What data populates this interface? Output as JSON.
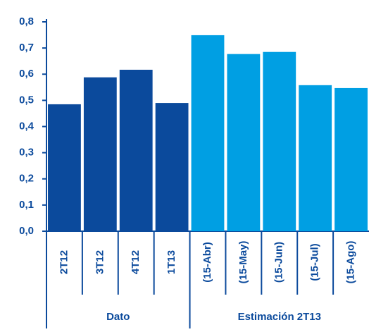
{
  "chart_data": {
    "type": "bar",
    "groups": [
      {
        "name": "Dato",
        "color": "#0b4a9c",
        "categories": [
          "2T12",
          "3T12",
          "4T12",
          "1T13"
        ],
        "values": [
          0.485,
          0.588,
          0.617,
          0.49
        ]
      },
      {
        "name": "Estimación 2T13",
        "color": "#009fe3",
        "categories": [
          "(15-Abr)",
          "(15-May)",
          "(15-Jun)",
          "(15-Jul)",
          "(15-Ago)"
        ],
        "values": [
          0.749,
          0.677,
          0.685,
          0.558,
          0.547
        ]
      }
    ],
    "ylim": [
      0,
      0.8
    ],
    "yticks": [
      {
        "value": 0,
        "label": "0,0"
      },
      {
        "value": 0.1,
        "label": "0,1"
      },
      {
        "value": 0.2,
        "label": "0,2"
      },
      {
        "value": 0.3,
        "label": "0,3"
      },
      {
        "value": 0.4,
        "label": "0,4"
      },
      {
        "value": 0.5,
        "label": "0,5"
      },
      {
        "value": 0.6,
        "label": "0,6"
      },
      {
        "value": 0.7,
        "label": "0,7"
      },
      {
        "value": 0.8,
        "label": "0,8"
      }
    ]
  }
}
